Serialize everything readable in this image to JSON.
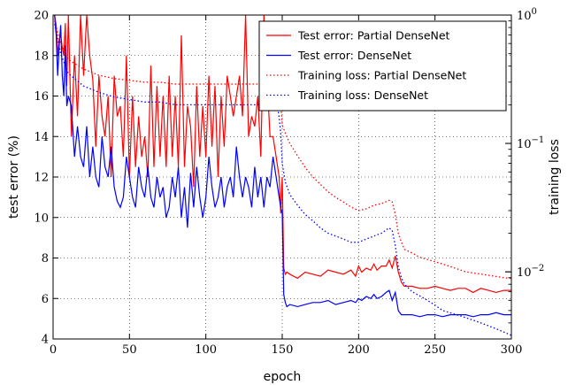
{
  "chart_data": {
    "type": "line",
    "xlabel": "epoch",
    "ylabel_left": "test error (%)",
    "ylabel_right": "training loss",
    "xlim": [
      0,
      300
    ],
    "ylim_left": [
      4,
      20
    ],
    "ylim_right_log": [
      0.003,
      1.0
    ],
    "grid": true,
    "legend_position": "top-right",
    "xticks": [
      0,
      50,
      100,
      150,
      200,
      250,
      300
    ],
    "yticks_left": [
      4,
      6,
      8,
      10,
      12,
      14,
      16,
      18,
      20
    ],
    "yticks_right": [
      {
        "value": 1.0,
        "label": "10^0"
      },
      {
        "value": 0.1,
        "label": "10^-1"
      },
      {
        "value": 0.01,
        "label": "10^-2"
      }
    ],
    "series": [
      {
        "name": "Test error: Partial DenseNet",
        "axis": "left",
        "style": "solid",
        "color": "#ff0000",
        "x": [
          1,
          2,
          3,
          4,
          5,
          6,
          7,
          8,
          9,
          10,
          12,
          14,
          16,
          18,
          20,
          22,
          24,
          26,
          28,
          30,
          32,
          34,
          36,
          38,
          40,
          42,
          44,
          46,
          48,
          50,
          52,
          54,
          56,
          58,
          60,
          62,
          64,
          66,
          68,
          70,
          72,
          74,
          76,
          78,
          80,
          82,
          84,
          86,
          88,
          90,
          92,
          94,
          96,
          98,
          100,
          102,
          104,
          106,
          108,
          110,
          112,
          114,
          116,
          118,
          120,
          122,
          124,
          126,
          128,
          130,
          132,
          134,
          136,
          138,
          140,
          142,
          144,
          146,
          148,
          149,
          150,
          151,
          152,
          153,
          155,
          160,
          165,
          170,
          175,
          180,
          185,
          190,
          195,
          198,
          200,
          202,
          205,
          208,
          210,
          212,
          215,
          218,
          220,
          222,
          224,
          226,
          228,
          230,
          235,
          240,
          245,
          250,
          255,
          260,
          265,
          270,
          275,
          280,
          285,
          290,
          295,
          300
        ],
        "y": [
          20,
          19.5,
          18,
          18.8,
          19,
          18.4,
          18,
          19.6,
          16.5,
          20,
          14,
          18,
          15,
          20,
          17,
          20,
          18,
          16.8,
          13.5,
          17,
          15,
          14,
          16,
          12,
          17,
          15,
          15.5,
          13,
          18,
          12,
          16,
          12.5,
          15,
          13,
          14,
          12,
          17.5,
          12.5,
          16.5,
          13,
          16,
          12.5,
          17,
          13,
          16,
          12.5,
          19,
          12.5,
          15.5,
          14.5,
          11.5,
          16.5,
          13,
          15.5,
          13,
          17,
          13.5,
          16.5,
          12,
          16,
          13.5,
          17,
          16,
          15,
          16,
          17,
          15,
          20,
          14,
          15,
          14.5,
          16,
          13,
          20,
          17,
          14,
          14,
          13,
          12,
          10.2,
          12,
          7.5,
          7.2,
          7.3,
          7.2,
          7.0,
          7.3,
          7.2,
          7.1,
          7.4,
          7.3,
          7.2,
          7.4,
          7.1,
          7.6,
          7.3,
          7.5,
          7.4,
          7.7,
          7.4,
          7.6,
          7.6,
          7.9,
          7.5,
          8.1,
          7.3,
          6.8,
          6.6,
          6.6,
          6.5,
          6.5,
          6.6,
          6.5,
          6.4,
          6.5,
          6.5,
          6.3,
          6.5,
          6.4,
          6.3,
          6.4,
          6.4
        ]
      },
      {
        "name": "Test error: DenseNet",
        "axis": "left",
        "style": "solid",
        "color": "#0000ff",
        "x": [
          1,
          2,
          3,
          4,
          5,
          6,
          7,
          8,
          9,
          10,
          12,
          14,
          16,
          18,
          20,
          22,
          24,
          26,
          28,
          30,
          32,
          34,
          36,
          38,
          40,
          42,
          44,
          46,
          48,
          50,
          52,
          54,
          56,
          58,
          60,
          62,
          64,
          66,
          68,
          70,
          72,
          74,
          76,
          78,
          80,
          82,
          84,
          86,
          88,
          90,
          92,
          94,
          96,
          98,
          100,
          102,
          104,
          106,
          108,
          110,
          112,
          114,
          116,
          118,
          120,
          122,
          124,
          126,
          128,
          130,
          132,
          134,
          136,
          138,
          140,
          142,
          144,
          146,
          148,
          149,
          150,
          151,
          152,
          153,
          155,
          160,
          165,
          170,
          175,
          180,
          185,
          190,
          195,
          198,
          200,
          202,
          205,
          208,
          210,
          212,
          215,
          218,
          220,
          222,
          224,
          226,
          228,
          230,
          235,
          240,
          245,
          250,
          255,
          260,
          265,
          270,
          275,
          280,
          285,
          290,
          295,
          300
        ],
        "y": [
          20,
          19,
          17,
          18.5,
          19.5,
          17,
          16,
          18.5,
          15.5,
          16,
          15.5,
          13,
          14.5,
          13,
          12.5,
          14.5,
          12,
          13.5,
          12,
          11.5,
          14,
          12.5,
          12,
          13.5,
          11.5,
          10.8,
          10.5,
          11,
          13,
          12,
          11,
          10.5,
          12.5,
          11.5,
          11,
          12.5,
          11,
          10.5,
          12,
          11,
          11.5,
          10,
          10.5,
          12,
          11,
          12.5,
          10,
          11.5,
          9.5,
          12.2,
          10.5,
          12.5,
          11,
          10,
          11,
          13,
          11.5,
          10.5,
          11,
          12,
          10.5,
          11.5,
          12,
          11,
          13.5,
          12,
          11,
          12,
          11.5,
          10.5,
          12.5,
          11,
          12,
          10.5,
          12,
          11.5,
          13,
          12,
          11,
          10.5,
          10.2,
          6.2,
          5.8,
          5.6,
          5.7,
          5.6,
          5.7,
          5.8,
          5.8,
          5.9,
          5.7,
          5.8,
          5.9,
          5.8,
          6.0,
          5.9,
          6.1,
          6.0,
          6.2,
          6.0,
          6.1,
          6.3,
          6.4,
          5.9,
          6.3,
          5.4,
          5.2,
          5.2,
          5.2,
          5.1,
          5.2,
          5.2,
          5.1,
          5.2,
          5.2,
          5.2,
          5.1,
          5.2,
          5.2,
          5.3,
          5.2,
          5.2
        ]
      },
      {
        "name": "Training loss: Partial DenseNet",
        "axis": "right",
        "style": "dotted",
        "color": "#ff0000",
        "x": [
          1,
          5,
          10,
          20,
          30,
          40,
          50,
          60,
          70,
          80,
          90,
          100,
          110,
          120,
          130,
          140,
          145,
          147,
          148,
          149,
          150,
          152,
          155,
          160,
          165,
          170,
          175,
          180,
          185,
          190,
          195,
          200,
          205,
          210,
          215,
          220,
          222,
          224,
          226,
          228,
          230,
          235,
          240,
          245,
          250,
          255,
          260,
          265,
          270,
          275,
          280,
          285,
          290,
          295,
          300
        ],
        "y": [
          0.9,
          0.6,
          0.45,
          0.38,
          0.34,
          0.32,
          0.31,
          0.3,
          0.3,
          0.29,
          0.29,
          0.29,
          0.29,
          0.29,
          0.29,
          0.29,
          0.3,
          0.28,
          0.25,
          0.2,
          0.14,
          0.12,
          0.1,
          0.08,
          0.065,
          0.055,
          0.048,
          0.042,
          0.038,
          0.035,
          0.032,
          0.03,
          0.031,
          0.033,
          0.034,
          0.036,
          0.035,
          0.028,
          0.02,
          0.017,
          0.015,
          0.014,
          0.013,
          0.0125,
          0.012,
          0.0115,
          0.011,
          0.0105,
          0.01,
          0.0098,
          0.0096,
          0.0094,
          0.0092,
          0.009,
          0.0089
        ]
      },
      {
        "name": "Training loss: DenseNet",
        "axis": "right",
        "style": "dotted",
        "color": "#0000ff",
        "x": [
          1,
          5,
          10,
          20,
          30,
          40,
          50,
          60,
          70,
          80,
          90,
          100,
          110,
          120,
          130,
          140,
          145,
          147,
          148,
          149,
          150,
          152,
          155,
          160,
          165,
          170,
          175,
          180,
          185,
          190,
          195,
          200,
          205,
          210,
          215,
          220,
          222,
          224,
          226,
          228,
          230,
          235,
          240,
          245,
          250,
          255,
          260,
          265,
          270,
          275,
          280,
          285,
          290,
          295,
          300
        ],
        "y": [
          0.85,
          0.5,
          0.35,
          0.28,
          0.25,
          0.23,
          0.22,
          0.21,
          0.21,
          0.2,
          0.2,
          0.2,
          0.2,
          0.2,
          0.2,
          0.2,
          0.21,
          0.19,
          0.16,
          0.12,
          0.07,
          0.05,
          0.04,
          0.033,
          0.028,
          0.025,
          0.022,
          0.02,
          0.019,
          0.018,
          0.017,
          0.017,
          0.018,
          0.019,
          0.02,
          0.022,
          0.021,
          0.016,
          0.011,
          0.009,
          0.008,
          0.007,
          0.0065,
          0.006,
          0.0055,
          0.005,
          0.0048,
          0.0046,
          0.0044,
          0.0042,
          0.004,
          0.0038,
          0.0036,
          0.0034,
          0.0032
        ]
      }
    ]
  }
}
